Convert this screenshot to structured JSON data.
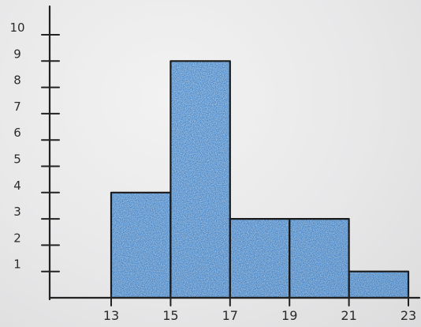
{
  "chart_data": {
    "type": "bar",
    "subtype": "histogram",
    "title": "",
    "xlabel": "",
    "ylabel": "",
    "bin_edges": [
      13,
      15,
      17,
      19,
      21,
      23
    ],
    "x_tick_labels": [
      "13",
      "15",
      "17",
      "19",
      "21",
      "23"
    ],
    "values": [
      4,
      9,
      3,
      3,
      1
    ],
    "y_ticks": [
      1,
      2,
      3,
      4,
      5,
      6,
      7,
      8,
      9,
      10
    ],
    "y_tick_labels": [
      "1",
      "2",
      "3",
      "4",
      "5",
      "6",
      "7",
      "8",
      "9",
      "10"
    ],
    "ylim": [
      0,
      10
    ],
    "xlim": [
      13,
      23
    ],
    "grid": false,
    "bar_color": "#1f6fc2",
    "outline_color": "#1a1a1a"
  }
}
